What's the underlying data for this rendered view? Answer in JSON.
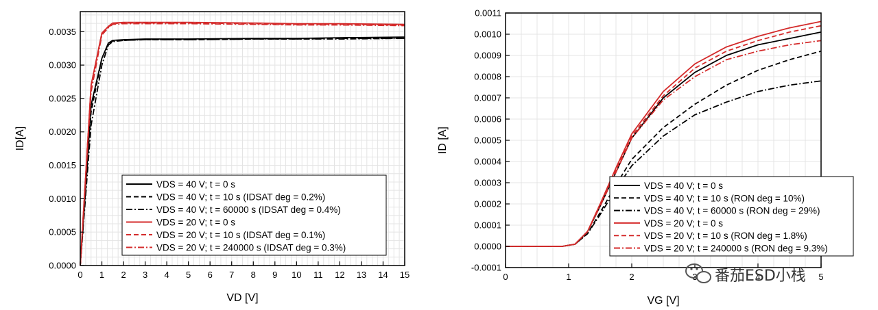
{
  "chart_data": [
    {
      "type": "line",
      "xlabel": "VD [V]",
      "ylabel": "ID[A]",
      "xlim": [
        0,
        15
      ],
      "ylim": [
        0,
        0.0038
      ],
      "xticks": [
        "0",
        "1",
        "2",
        "3",
        "4",
        "5",
        "6",
        "7",
        "8",
        "9",
        "10",
        "11",
        "12",
        "13",
        "14",
        "15"
      ],
      "yticks": [
        "0.0000",
        "0.0005",
        "0.0010",
        "0.0015",
        "0.0020",
        "0.0025",
        "0.0030",
        "0.0035"
      ],
      "grid": true,
      "legend_position": "lower-right",
      "series": [
        {
          "name": "VDS = 40 V; t = 0 s",
          "color": "#000000",
          "dash": "solid",
          "x": [
            0,
            0.5,
            1.0,
            1.3,
            1.5,
            2,
            3,
            5,
            8,
            10,
            12,
            15
          ],
          "y": [
            0,
            0.0024,
            0.0031,
            0.00333,
            0.00337,
            0.00338,
            0.00339,
            0.00339,
            0.0034,
            0.0034,
            0.00341,
            0.00342
          ]
        },
        {
          "name": "VDS = 40 V; t = 10 s (IDSAT deg = 0.2%)",
          "color": "#000000",
          "dash": "dash",
          "x": [
            0,
            0.5,
            1.0,
            1.3,
            1.5,
            2,
            3,
            5,
            8,
            10,
            12,
            15
          ],
          "y": [
            0,
            0.0023,
            0.0031,
            0.00332,
            0.00336,
            0.00337,
            0.00338,
            0.00338,
            0.00339,
            0.00339,
            0.0034,
            0.0034
          ]
        },
        {
          "name": "VDS = 40 V; t = 60000 s (IDSAT deg = 0.4%)",
          "color": "#000000",
          "dash": "dashdot",
          "x": [
            0,
            0.5,
            1.0,
            1.3,
            1.5,
            2,
            3,
            5,
            8,
            10,
            12,
            15
          ],
          "y": [
            0,
            0.0021,
            0.003,
            0.0033,
            0.00335,
            0.00337,
            0.00338,
            0.00338,
            0.00339,
            0.00339,
            0.00339,
            0.0034
          ]
        },
        {
          "name": "VDS = 20 V; t = 0 s",
          "color": "#d42b2b",
          "dash": "solid",
          "x": [
            0,
            0.5,
            1.0,
            1.3,
            1.5,
            2,
            3,
            5,
            8,
            10,
            12,
            15
          ],
          "y": [
            0,
            0.0027,
            0.00348,
            0.00358,
            0.00363,
            0.00364,
            0.00364,
            0.00364,
            0.00363,
            0.00362,
            0.00362,
            0.00361
          ]
        },
        {
          "name": "VDS = 20 V; t = 10 s (IDSAT deg = 0.1%)",
          "color": "#d42b2b",
          "dash": "dash",
          "x": [
            0,
            0.5,
            1.0,
            1.3,
            1.5,
            2,
            3,
            5,
            8,
            10,
            12,
            15
          ],
          "y": [
            0,
            0.0027,
            0.00347,
            0.00357,
            0.00362,
            0.00363,
            0.00363,
            0.00363,
            0.00362,
            0.00361,
            0.00361,
            0.0036
          ]
        },
        {
          "name": "VDS = 20 V; t = 240000 s (IDSAT deg = 0.3%)",
          "color": "#d42b2b",
          "dash": "dashdot",
          "x": [
            0,
            0.5,
            1.0,
            1.3,
            1.5,
            2,
            3,
            5,
            8,
            10,
            12,
            15
          ],
          "y": [
            0,
            0.0026,
            0.00345,
            0.00356,
            0.00361,
            0.00362,
            0.00362,
            0.00362,
            0.00361,
            0.0036,
            0.0036,
            0.00359
          ]
        }
      ]
    },
    {
      "type": "line",
      "xlabel": "VG [V]",
      "ylabel": "ID [A]",
      "xlim": [
        0,
        5
      ],
      "ylim": [
        -0.0001,
        0.0011
      ],
      "xticks": [
        "0",
        "1",
        "2",
        "3",
        "4",
        "5"
      ],
      "yticks": [
        "-0.0001",
        "0.0000",
        "0.0001",
        "0.0002",
        "0.0003",
        "0.0004",
        "0.0005",
        "0.0006",
        "0.0007",
        "0.0008",
        "0.0009",
        "0.0010",
        "0.0011"
      ],
      "grid": true,
      "legend_position": "lower-right",
      "series": [
        {
          "name": "VDS = 40 V; t = 0 s",
          "color": "#000000",
          "dash": "solid",
          "x": [
            0,
            0.9,
            1.1,
            1.3,
            1.5,
            1.75,
            2,
            2.5,
            3,
            3.5,
            4,
            4.5,
            5
          ],
          "y": [
            0,
            0,
            1e-05,
            7e-05,
            0.00019,
            0.00035,
            0.00051,
            0.0007,
            0.00082,
            0.0009,
            0.00095,
            0.00098,
            0.00101
          ]
        },
        {
          "name": "VDS = 40 V; t = 10 s (RON deg = 10%)",
          "color": "#000000",
          "dash": "dash",
          "x": [
            0,
            0.9,
            1.1,
            1.3,
            1.5,
            1.75,
            2,
            2.5,
            3,
            3.5,
            4,
            4.5,
            5
          ],
          "y": [
            0,
            0,
            1e-05,
            6e-05,
            0.00016,
            0.00029,
            0.00041,
            0.00056,
            0.00067,
            0.00076,
            0.00083,
            0.00088,
            0.00092
          ]
        },
        {
          "name": "VDS = 40 V; t = 60000 s (RON deg = 29%)",
          "color": "#000000",
          "dash": "dashdot",
          "x": [
            0,
            0.9,
            1.1,
            1.3,
            1.5,
            1.75,
            2,
            2.5,
            3,
            3.5,
            4,
            4.5,
            5
          ],
          "y": [
            0,
            0,
            1e-05,
            6e-05,
            0.00015,
            0.00027,
            0.00038,
            0.00052,
            0.00062,
            0.00068,
            0.00073,
            0.00076,
            0.00078
          ]
        },
        {
          "name": "VDS = 20 V; t = 0 s",
          "color": "#d42b2b",
          "dash": "solid",
          "x": [
            0,
            0.9,
            1.1,
            1.3,
            1.5,
            1.75,
            2,
            2.5,
            3,
            3.5,
            4,
            4.5,
            5
          ],
          "y": [
            0,
            0,
            1e-05,
            7e-05,
            0.0002,
            0.00037,
            0.00053,
            0.00073,
            0.00086,
            0.00094,
            0.00099,
            0.00103,
            0.00106
          ]
        },
        {
          "name": "VDS = 20 V; t = 10 s (RON deg = 1.8%)",
          "color": "#d42b2b",
          "dash": "dash",
          "x": [
            0,
            0.9,
            1.1,
            1.3,
            1.5,
            1.75,
            2,
            2.5,
            3,
            3.5,
            4,
            4.5,
            5
          ],
          "y": [
            0,
            0,
            1e-05,
            7e-05,
            0.0002,
            0.00036,
            0.00052,
            0.00071,
            0.00084,
            0.00092,
            0.00097,
            0.00101,
            0.00104
          ]
        },
        {
          "name": "VDS = 20 V; t = 240000 s (RON deg = 9.3%)",
          "color": "#d42b2b",
          "dash": "dashdot",
          "x": [
            0,
            0.9,
            1.1,
            1.3,
            1.5,
            1.75,
            2,
            2.5,
            3,
            3.5,
            4,
            4.5,
            5
          ],
          "y": [
            0,
            0,
            1e-05,
            7e-05,
            0.00019,
            0.00035,
            0.00051,
            0.00069,
            0.0008,
            0.00088,
            0.00092,
            0.00095,
            0.00097
          ]
        }
      ]
    }
  ],
  "watermark": {
    "text": "番茄ESD小栈",
    "icon": "wechat-logo-icon"
  }
}
